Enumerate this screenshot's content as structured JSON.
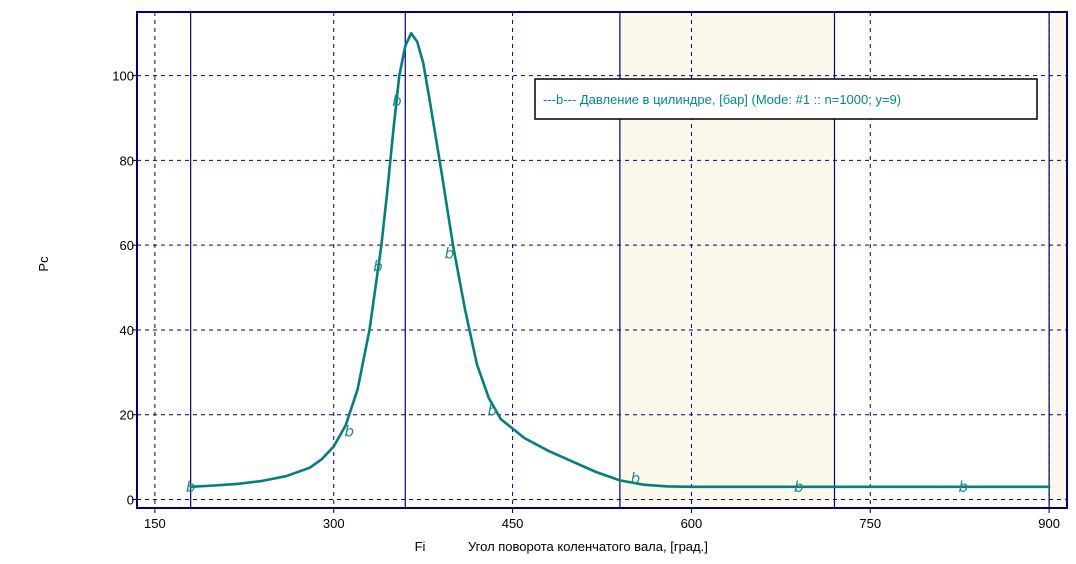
{
  "colors": {
    "series": "#008080",
    "marker_text": "#1a8a8a",
    "frame": "#000080",
    "grid": "#000080",
    "shaded_band": "#fdf8ec",
    "background": "#ffffff"
  },
  "chart_data": {
    "type": "line",
    "title": "",
    "xlabel_short": "Fi",
    "xlabel": "Угол поворота коленчатого вала, [град.]",
    "ylabel": "Pc",
    "xlim": [
      135,
      915
    ],
    "ylim": [
      -2,
      115
    ],
    "xticks": [
      150,
      300,
      450,
      600,
      750,
      900
    ],
    "yticks": [
      0,
      20,
      40,
      60,
      80,
      100
    ],
    "x_tick_labels": [
      "150",
      "300",
      "450",
      "600",
      "750",
      "900"
    ],
    "y_tick_labels": [
      "0",
      "20",
      "40",
      "60",
      "80",
      "100"
    ],
    "vertical_lines": [
      180,
      360,
      540,
      720,
      900
    ],
    "shaded_ranges": [
      [
        540,
        720
      ],
      [
        900,
        915
      ]
    ],
    "grid": true,
    "legend_position": "top-right",
    "legend_label": "---b---   Давление в цилиндре, [бар] (Mode: #1 :: n=1000; y=9)",
    "series": [
      {
        "name": "Давление в цилиндре, [бар] (Mode: #1 :: n=1000; y=9)",
        "marker": "b",
        "x": [
          180,
          200,
          220,
          240,
          260,
          280,
          290,
          300,
          310,
          320,
          330,
          340,
          345,
          350,
          355,
          360,
          365,
          370,
          375,
          380,
          390,
          400,
          410,
          420,
          430,
          440,
          460,
          480,
          500,
          520,
          540,
          560,
          580,
          600,
          650,
          700,
          750,
          800,
          850,
          900
        ],
        "values": [
          3,
          3.3,
          3.7,
          4.4,
          5.5,
          7.5,
          9.5,
          12.5,
          17.5,
          26,
          40,
          60,
          73,
          87,
          100,
          107,
          110,
          108,
          103,
          95,
          78,
          60,
          45,
          32,
          24,
          19,
          14.5,
          11.5,
          9,
          6.5,
          4.5,
          3.5,
          3.1,
          3,
          3,
          3,
          3,
          3,
          3,
          3
        ]
      }
    ],
    "marker_labels": [
      {
        "text": "b",
        "x": 180,
        "y": 3
      },
      {
        "text": "b",
        "x": 313,
        "y": 16
      },
      {
        "text": "b",
        "x": 337,
        "y": 55
      },
      {
        "text": "b",
        "x": 353,
        "y": 94
      },
      {
        "text": "b",
        "x": 397,
        "y": 58
      },
      {
        "text": "b",
        "x": 433,
        "y": 21
      },
      {
        "text": "b",
        "x": 553,
        "y": 5
      },
      {
        "text": "b",
        "x": 690,
        "y": 3
      },
      {
        "text": "b",
        "x": 828,
        "y": 3
      }
    ]
  }
}
